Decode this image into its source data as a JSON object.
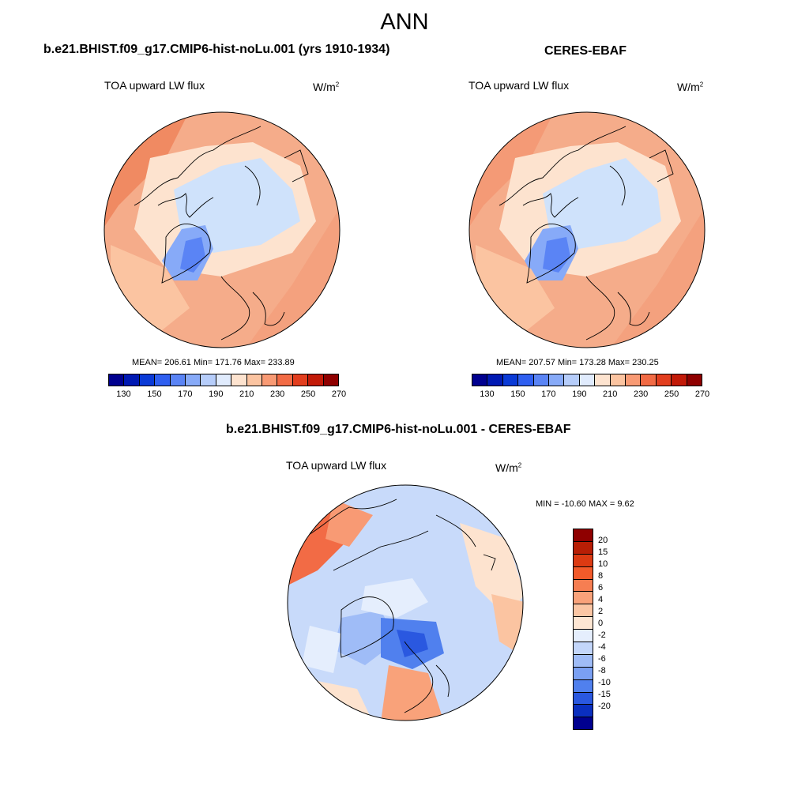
{
  "title": "ANN",
  "panels": {
    "model": {
      "title": "b.e21.BHIST.f09_g17.CMIP6-hist-noLu.001 (yrs 1910-1934)",
      "variable": "TOA upward LW flux",
      "units": "W/m",
      "units_sup": "2",
      "stats": "MEAN= 206.61  Min= 171.76  Max= 233.89"
    },
    "obs": {
      "title": "CERES-EBAF",
      "variable": "TOA upward LW flux",
      "units": "W/m",
      "units_sup": "2",
      "stats": "MEAN= 207.57  Min= 173.28  Max= 230.25"
    },
    "diff": {
      "title": "b.e21.BHIST.f09_g17.CMIP6-hist-noLu.001 - CERES-EBAF",
      "variable": "TOA upward LW flux",
      "units": "W/m",
      "units_sup": "2",
      "stats": "MIN = -10.60 MAX =   9.62"
    }
  },
  "colorbar_abs": {
    "labels": [
      "130",
      "150",
      "170",
      "190",
      "210",
      "230",
      "250",
      "270"
    ],
    "colors": [
      "#00008f",
      "#0019b3",
      "#0a3ad6",
      "#2f5ff0",
      "#5a84f5",
      "#87aaf8",
      "#b6cdfa",
      "#e0ebfd",
      "#fde3cf",
      "#fbc4a1",
      "#f89a74",
      "#f26b45",
      "#e23e1e",
      "#c21a08",
      "#8f0000"
    ]
  },
  "colorbar_diff": {
    "labels": [
      "20",
      "15",
      "10",
      "8",
      "6",
      "4",
      "2",
      "0",
      "-2",
      "-4",
      "-6",
      "-8",
      "-10",
      "-15",
      "-20"
    ],
    "colors": [
      "#8f0000",
      "#b81e05",
      "#dc3a12",
      "#f25a2a",
      "#f67e52",
      "#f9a27a",
      "#fbc6a4",
      "#fde6d3",
      "#e5eefd",
      "#c3d6fa",
      "#9fbcf7",
      "#7aa0f3",
      "#5080ee",
      "#2a58e0",
      "#0a2fbf",
      "#00008f"
    ]
  },
  "map_colors": {
    "ocean_warm": "#f7b89a",
    "land_cold": "#cfe2fb",
    "greenland": "#6f95f2",
    "diff_neg": "#b8d0f9",
    "diff_pos": "#f6a07d"
  }
}
